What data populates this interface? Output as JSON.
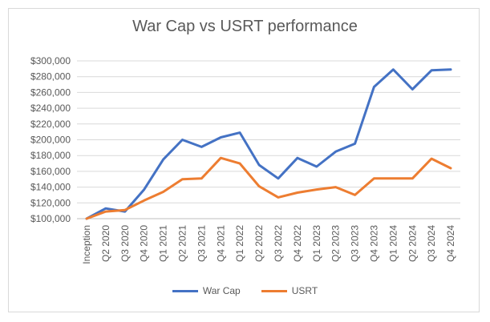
{
  "chart_data": {
    "type": "line",
    "title": "War Cap vs USRT performance",
    "categories": [
      "Inception",
      "Q2 2020",
      "Q3 2020",
      "Q4 2020",
      "Q1 2021",
      "Q2 2021",
      "Q3 2021",
      "Q4 2021",
      "Q1 2022",
      "Q2 2022",
      "Q3 2022",
      "Q4 2022",
      "Q1 2023",
      "Q2 2023",
      "Q3 2023",
      "Q4 2023",
      "Q1 2024",
      "Q2 2024",
      "Q3 2024",
      "Q4 2024"
    ],
    "series": [
      {
        "name": "War Cap",
        "color": "#4472c4",
        "values": [
          100000,
          113000,
          109000,
          137000,
          175000,
          200000,
          191000,
          203000,
          209000,
          168000,
          151000,
          177000,
          166000,
          185000,
          195000,
          267000,
          289000,
          264000,
          288000,
          289000
        ]
      },
      {
        "name": "USRT",
        "color": "#ed7d31",
        "values": [
          100000,
          109000,
          111000,
          123000,
          134000,
          150000,
          151000,
          177000,
          170000,
          141000,
          127000,
          133000,
          137000,
          140000,
          130000,
          151000,
          151000,
          151000,
          176000,
          164000
        ]
      }
    ],
    "yticks": [
      "$100,000",
      "$120,000",
      "$140,000",
      "$160,000",
      "$180,000",
      "$200,000",
      "$220,000",
      "$240,000",
      "$260,000",
      "$280,000",
      "$300,000"
    ],
    "ylim": [
      100000,
      300000
    ],
    "grid": true,
    "legend_position": "bottom"
  }
}
